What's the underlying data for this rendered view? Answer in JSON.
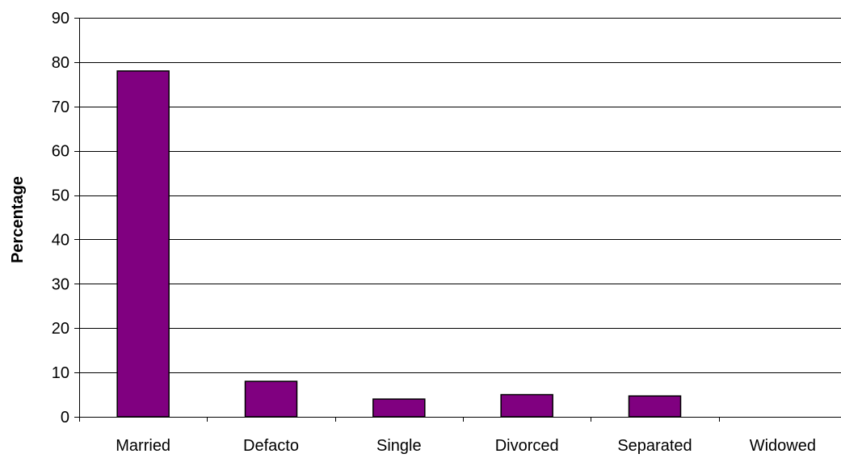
{
  "chart_data": {
    "type": "bar",
    "title": "",
    "xlabel": "",
    "ylabel": "Percentage",
    "categories": [
      "Married",
      "Defacto",
      "Single",
      "Divorced",
      "Separated",
      "Widowed"
    ],
    "values": [
      78,
      8,
      4,
      5,
      4.7,
      0
    ],
    "ylim": [
      0,
      90
    ],
    "yticks": [
      0,
      10,
      20,
      30,
      40,
      50,
      60,
      70,
      80,
      90
    ],
    "grid": true,
    "legend": "none",
    "colors": {
      "bar_fill": "#800080",
      "bar_stroke": "#000000",
      "grid": "#000000",
      "axis": "#000000"
    }
  }
}
